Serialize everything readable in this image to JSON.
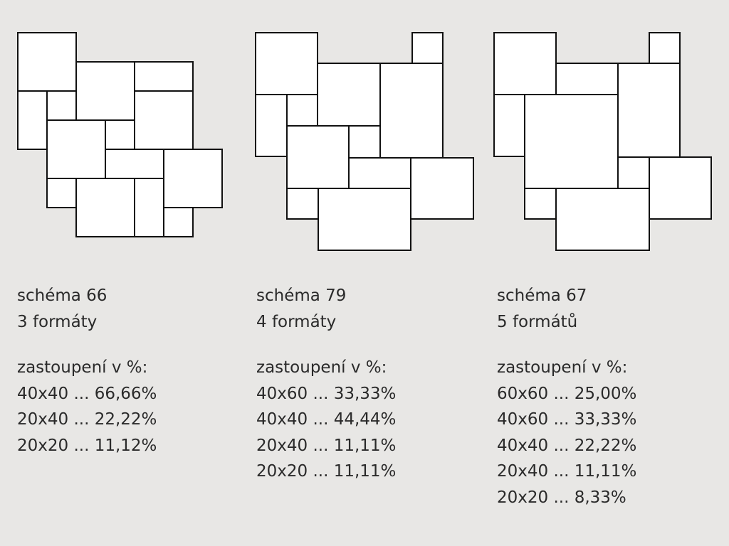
{
  "schemes": [
    {
      "title": "schéma 66",
      "formats": "3 formáty",
      "share_heading": "zastoupení v %:",
      "shares": [
        "40x40 ... 66,66%",
        "20x40 ... 22,22%",
        "20x20 ... 11,12%"
      ]
    },
    {
      "title": "schéma 79",
      "formats": "4 formáty",
      "share_heading": "zastoupení v %:",
      "shares": [
        "40x60 ... 33,33%",
        "40x40 ... 44,44%",
        "20x40 ... 11,11%",
        "20x20 ... 11,11%"
      ]
    },
    {
      "title": "schéma 67",
      "formats": "5 formátů",
      "share_heading": "zastoupení v %:",
      "shares": [
        "60x60 ... 25,00%",
        "40x60 ... 33,33%",
        "40x40 ... 22,22%",
        "20x40 ... 11,11%",
        "20x20 ... 8,33%"
      ]
    }
  ],
  "colors": {
    "background": "#e8e7e5",
    "tile_fill": "#ffffff",
    "tile_stroke": "#111111"
  }
}
